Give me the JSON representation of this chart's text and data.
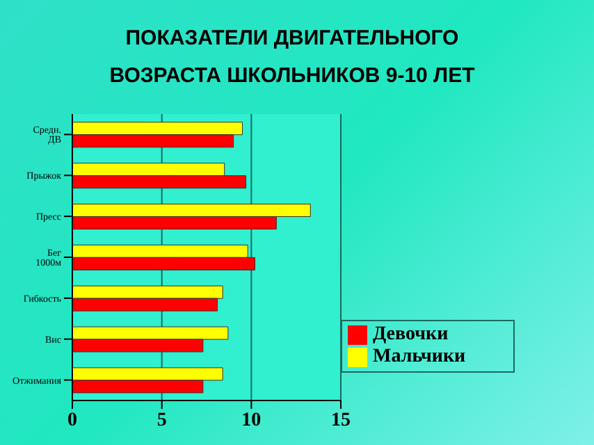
{
  "chart_data": {
    "type": "bar",
    "orientation": "horizontal",
    "title": "ПОКАЗАТЕЛИ ДВИГАТЕЛЬНОГО ВОЗРАСТА  ШКОЛЬНИКОВ 9-10 ЛЕТ",
    "categories": [
      "Средн. ДВ",
      "Прыжок",
      "Пресс",
      "Бег 1000м",
      "Гибкость",
      "Вис",
      "Отжимания"
    ],
    "series": [
      {
        "name": "Мальчики",
        "color": "#ffff00",
        "values": [
          9.5,
          8.5,
          13.3,
          9.8,
          8.4,
          8.7,
          8.4
        ]
      },
      {
        "name": "Девочки",
        "color": "#ff0000",
        "values": [
          9.0,
          9.7,
          11.4,
          10.2,
          8.1,
          7.3,
          7.3
        ]
      }
    ],
    "xlim": [
      0,
      15
    ],
    "xticks": [
      0,
      5,
      10,
      15
    ],
    "grid": "x",
    "legend": "bottom right"
  }
}
